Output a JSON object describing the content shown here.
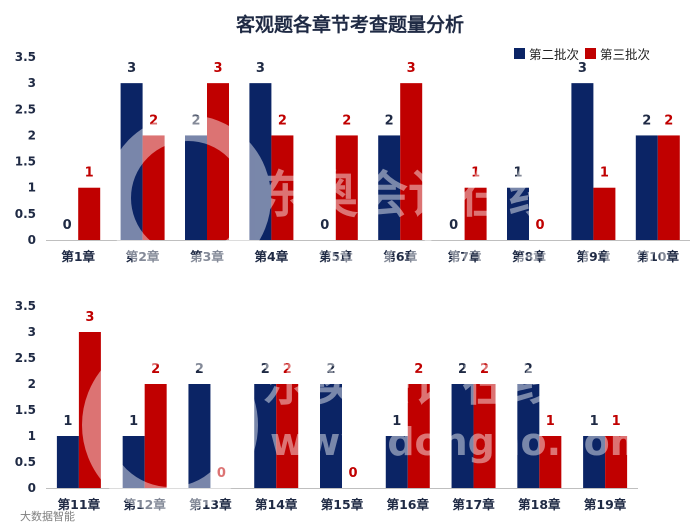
{
  "chart_data": {
    "type": "bar",
    "title": "客观题各章节考查题量分析",
    "legend": [
      "第二批次",
      "第三批次"
    ],
    "colors": {
      "series1": "#0b2465",
      "series2": "#c00000",
      "axis": "#bfbfbf",
      "label1": "#1f2a44",
      "label2": "#c00000"
    },
    "ylim": [
      0,
      3.5
    ],
    "yticks": [
      "0",
      "0.5",
      "1",
      "1.5",
      "2",
      "2.5",
      "3",
      "3.5"
    ],
    "panels": [
      {
        "categories": [
          "第1章",
          "第2章",
          "第3章",
          "第4章",
          "第5章",
          "第6章",
          "第7章",
          "第8章",
          "第9章",
          "第10章"
        ],
        "series": [
          {
            "name": "第二批次",
            "values": [
              0,
              3,
              2,
              3,
              0,
              2,
              0,
              1,
              3,
              2
            ]
          },
          {
            "name": "第三批次",
            "values": [
              1,
              2,
              3,
              2,
              2,
              3,
              1,
              0,
              1,
              2
            ]
          }
        ]
      },
      {
        "categories": [
          "第11章",
          "第12章",
          "第13章",
          "第14章",
          "第15章",
          "第16章",
          "第17章",
          "第18章",
          "第19章"
        ],
        "series": [
          {
            "name": "第二批次",
            "values": [
              1,
              1,
              2,
              2,
              2,
              1,
              2,
              2,
              1
            ]
          },
          {
            "name": "第三批次",
            "values": [
              3,
              2,
              0,
              2,
              0,
              2,
              2,
              1,
              1
            ]
          }
        ]
      }
    ]
  },
  "watermark": {
    "brand": "东奥会计在线",
    "url": "www.dongao.com",
    "corner": "大数据智能"
  }
}
